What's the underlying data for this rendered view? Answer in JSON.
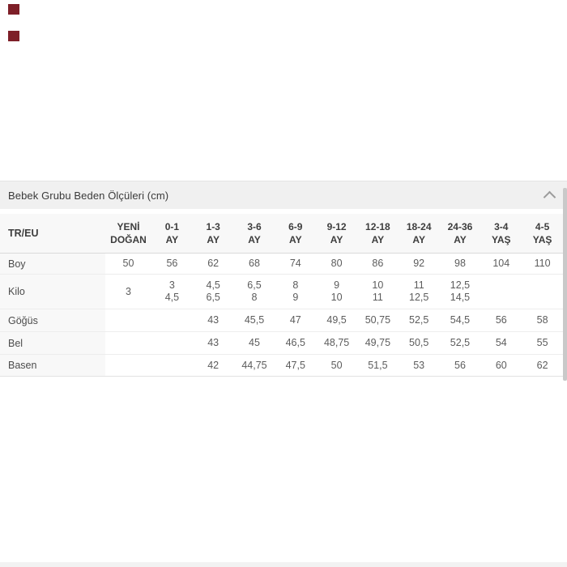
{
  "page": {
    "background_color": "#ffffff",
    "swatch_color": "#7e1f28",
    "section_header_bg": "#f0f0f0"
  },
  "size_section": {
    "title": "Bebek Grubu Beden Ölçüleri (cm)",
    "state": "expanded"
  },
  "size_table": {
    "label_header": "TR/EU",
    "column_headers": [
      [
        "YENİ",
        "DOĞAN"
      ],
      [
        "0-1",
        "AY"
      ],
      [
        "1-3",
        "AY"
      ],
      [
        "3-6",
        "AY"
      ],
      [
        "6-9",
        "AY"
      ],
      [
        "9-12",
        "AY"
      ],
      [
        "12-18",
        "AY"
      ],
      [
        "18-24",
        "AY"
      ],
      [
        "24-36",
        "AY"
      ],
      [
        "3-4",
        "YAŞ"
      ],
      [
        "4-5",
        "YAŞ"
      ]
    ],
    "rows": [
      {
        "label": "Boy",
        "cells": [
          [
            "50"
          ],
          [
            "56"
          ],
          [
            "62"
          ],
          [
            "68"
          ],
          [
            "74"
          ],
          [
            "80"
          ],
          [
            "86"
          ],
          [
            "92"
          ],
          [
            "98"
          ],
          [
            "104"
          ],
          [
            "110"
          ]
        ]
      },
      {
        "label": "Kilo",
        "cells": [
          [
            "3"
          ],
          [
            "3",
            "4,5"
          ],
          [
            "4,5",
            "6,5"
          ],
          [
            "6,5",
            "8"
          ],
          [
            "8",
            "9"
          ],
          [
            "9",
            "10"
          ],
          [
            "10",
            "11"
          ],
          [
            "11",
            "12,5"
          ],
          [
            "12,5",
            "14,5"
          ],
          [],
          []
        ]
      },
      {
        "label": "Göğüs",
        "cells": [
          [],
          [],
          [
            "43"
          ],
          [
            "45,5"
          ],
          [
            "47"
          ],
          [
            "49,5"
          ],
          [
            "50,75"
          ],
          [
            "52,5"
          ],
          [
            "54,5"
          ],
          [
            "56"
          ],
          [
            "58"
          ]
        ]
      },
      {
        "label": "Bel",
        "cells": [
          [],
          [],
          [
            "43"
          ],
          [
            "45"
          ],
          [
            "46,5"
          ],
          [
            "48,75"
          ],
          [
            "49,75"
          ],
          [
            "50,5"
          ],
          [
            "52,5"
          ],
          [
            "54"
          ],
          [
            "55"
          ]
        ]
      },
      {
        "label": "Basen",
        "cells": [
          [],
          [],
          [
            "42"
          ],
          [
            "44,75"
          ],
          [
            "47,5"
          ],
          [
            "50"
          ],
          [
            "51,5"
          ],
          [
            "53"
          ],
          [
            "56"
          ],
          [
            "60"
          ],
          [
            "62"
          ]
        ]
      }
    ]
  }
}
